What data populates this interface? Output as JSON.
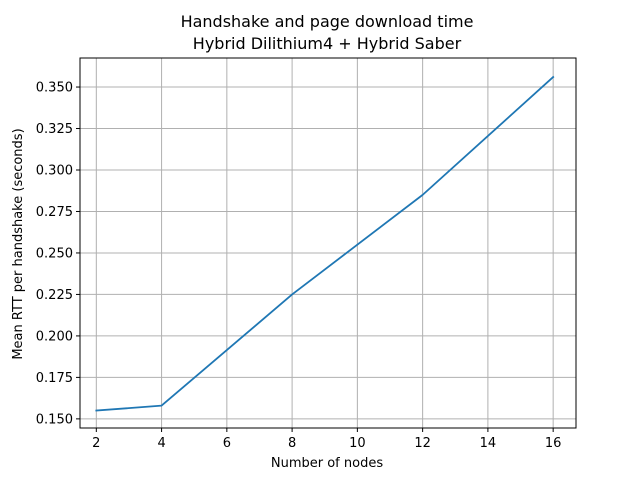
{
  "chart_data": {
    "type": "line",
    "title": "Handshake and page download time",
    "subtitle": "Hybrid Dilithium4 + Hybrid Saber",
    "xlabel": "Number of nodes",
    "ylabel": "Mean RTT per handshake (seconds)",
    "xlim": [
      1.5,
      16.7
    ],
    "ylim": [
      0.1445,
      0.3675
    ],
    "xticks": [
      2,
      4,
      6,
      8,
      10,
      12,
      14,
      16
    ],
    "yticks": [
      0.15,
      0.175,
      0.2,
      0.225,
      0.25,
      0.275,
      0.3,
      0.325,
      0.35
    ],
    "xtick_labels": [
      "2",
      "4",
      "6",
      "8",
      "10",
      "12",
      "14",
      "16"
    ],
    "ytick_labels": [
      "0.150",
      "0.175",
      "0.200",
      "0.225",
      "0.250",
      "0.275",
      "0.300",
      "0.325",
      "0.350"
    ],
    "grid": true,
    "legend": "none",
    "series": [
      {
        "color": "#1f77b4",
        "x": [
          2,
          4,
          8,
          12,
          16
        ],
        "y": [
          0.155,
          0.158,
          0.225,
          0.285,
          0.356
        ]
      }
    ]
  }
}
